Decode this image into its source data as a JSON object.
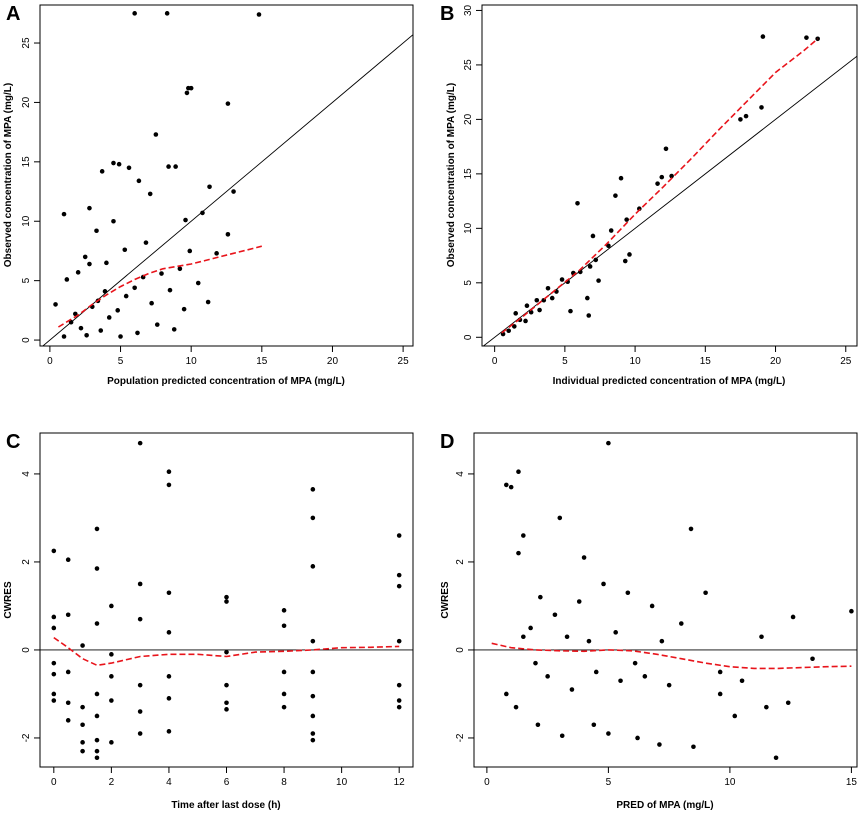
{
  "colors": {
    "points": "#000000",
    "loess": "#e8141b",
    "reference": "#000000"
  },
  "chart_data": [
    {
      "panel": "A",
      "type": "scatter",
      "xlabel": "Population predicted concentration of MPA (mg/L)",
      "ylabel": "Observed concentration of MPA (mg/L)",
      "xlim": [
        -0.7,
        25.7
      ],
      "ylim": [
        -0.5,
        28.2
      ],
      "xticks": [
        0,
        5,
        10,
        15,
        20,
        25
      ],
      "yticks": [
        0,
        5,
        10,
        15,
        20,
        25
      ],
      "reference_line": {
        "type": "identity",
        "label": "y = x"
      },
      "trend_line": {
        "type": "loess",
        "x": [
          0.6,
          2,
          3,
          4,
          5,
          6,
          7,
          8,
          9,
          10,
          11,
          12,
          13,
          14,
          15
        ],
        "y": [
          1.1,
          2.1,
          3.0,
          3.8,
          4.5,
          5.1,
          5.6,
          6.0,
          6.2,
          6.4,
          6.7,
          7.0,
          7.3,
          7.6,
          7.9
        ]
      },
      "points": [
        [
          6.0,
          27.5
        ],
        [
          8.3,
          27.5
        ],
        [
          14.8,
          27.4
        ],
        [
          9.8,
          21.2
        ],
        [
          10.0,
          21.2
        ],
        [
          9.7,
          20.8
        ],
        [
          12.6,
          19.9
        ],
        [
          7.5,
          17.3
        ],
        [
          4.5,
          14.9
        ],
        [
          4.9,
          14.8
        ],
        [
          5.6,
          14.5
        ],
        [
          8.4,
          14.6
        ],
        [
          8.9,
          14.6
        ],
        [
          3.7,
          14.2
        ],
        [
          2.8,
          11.1
        ],
        [
          1.0,
          10.6
        ],
        [
          10.8,
          10.7
        ],
        [
          13.0,
          12.5
        ],
        [
          11.3,
          12.9
        ],
        [
          6.3,
          13.4
        ],
        [
          7.1,
          12.3
        ],
        [
          9.6,
          10.1
        ],
        [
          4.5,
          10.0
        ],
        [
          3.3,
          9.2
        ],
        [
          12.6,
          8.9
        ],
        [
          11.8,
          7.3
        ],
        [
          6.8,
          8.2
        ],
        [
          5.3,
          7.6
        ],
        [
          2.5,
          7.0
        ],
        [
          2.8,
          6.4
        ],
        [
          4.0,
          6.5
        ],
        [
          2.0,
          5.7
        ],
        [
          1.2,
          5.1
        ],
        [
          0.4,
          3.0
        ],
        [
          1.5,
          1.5
        ],
        [
          1.8,
          2.2
        ],
        [
          2.2,
          1.0
        ],
        [
          2.6,
          0.4
        ],
        [
          3.0,
          2.8
        ],
        [
          3.4,
          3.3
        ],
        [
          3.9,
          4.1
        ],
        [
          4.2,
          1.9
        ],
        [
          4.8,
          2.5
        ],
        [
          5.4,
          3.7
        ],
        [
          6.0,
          4.4
        ],
        [
          6.6,
          5.3
        ],
        [
          7.2,
          3.1
        ],
        [
          7.9,
          5.6
        ],
        [
          8.5,
          4.2
        ],
        [
          9.2,
          6.0
        ],
        [
          9.9,
          7.5
        ],
        [
          10.5,
          4.8
        ],
        [
          11.2,
          3.2
        ],
        [
          6.2,
          0.6
        ],
        [
          7.6,
          1.3
        ],
        [
          8.8,
          0.9
        ],
        [
          9.5,
          2.6
        ],
        [
          5.0,
          0.3
        ],
        [
          3.6,
          0.8
        ],
        [
          1.0,
          0.3
        ]
      ]
    },
    {
      "panel": "B",
      "type": "scatter",
      "xlabel": "Individual predicted concentration of MPA (mg/L)",
      "ylabel": "Observed concentration of MPA (mg/L)",
      "xlim": [
        -0.9,
        25.8
      ],
      "ylim": [
        -0.8,
        30.5
      ],
      "xticks": [
        0,
        5,
        10,
        15,
        20,
        25
      ],
      "yticks": [
        0,
        5,
        10,
        15,
        20,
        25,
        30
      ],
      "reference_line": {
        "type": "identity",
        "label": "y = x"
      },
      "trend_line": {
        "type": "loess",
        "x": [
          0.5,
          2,
          4,
          6,
          8,
          10,
          12,
          14,
          16,
          18,
          20,
          22,
          23
        ],
        "y": [
          0.4,
          1.9,
          4.0,
          6.1,
          8.6,
          11.3,
          13.8,
          16.4,
          19.1,
          21.7,
          24.3,
          26.3,
          27.4
        ]
      },
      "points": [
        [
          19.1,
          27.6
        ],
        [
          22.2,
          27.5
        ],
        [
          23.0,
          27.4
        ],
        [
          17.5,
          20.0
        ],
        [
          17.9,
          20.3
        ],
        [
          19.0,
          21.1
        ],
        [
          12.2,
          17.3
        ],
        [
          12.6,
          14.8
        ],
        [
          11.9,
          14.7
        ],
        [
          11.6,
          14.1
        ],
        [
          9.0,
          14.6
        ],
        [
          5.9,
          12.3
        ],
        [
          8.6,
          13.0
        ],
        [
          10.3,
          11.8
        ],
        [
          9.4,
          10.8
        ],
        [
          7.0,
          9.3
        ],
        [
          8.3,
          9.8
        ],
        [
          9.6,
          7.6
        ],
        [
          9.3,
          7.0
        ],
        [
          7.4,
          5.2
        ],
        [
          6.6,
          3.6
        ],
        [
          6.7,
          2.0
        ],
        [
          5.4,
          2.4
        ],
        [
          4.1,
          3.6
        ],
        [
          3.2,
          2.5
        ],
        [
          2.2,
          1.5
        ],
        [
          1.4,
          1.0
        ],
        [
          0.6,
          0.3
        ],
        [
          1.0,
          0.6
        ],
        [
          1.8,
          1.6
        ],
        [
          2.6,
          2.3
        ],
        [
          3.5,
          3.4
        ],
        [
          4.4,
          4.2
        ],
        [
          5.2,
          5.1
        ],
        [
          6.1,
          6.0
        ],
        [
          7.2,
          7.1
        ],
        [
          8.1,
          8.4
        ],
        [
          3.0,
          3.4
        ],
        [
          4.8,
          5.3
        ],
        [
          5.6,
          5.9
        ],
        [
          2.3,
          2.9
        ],
        [
          1.5,
          2.2
        ],
        [
          6.8,
          6.5
        ],
        [
          3.8,
          4.5
        ]
      ]
    },
    {
      "panel": "C",
      "type": "scatter",
      "xlabel": "Time after last dose (h)",
      "ylabel": "CWRES",
      "xlim": [
        -0.48,
        12.48
      ],
      "ylim": [
        -2.66,
        4.93
      ],
      "xticks": [
        0,
        2,
        4,
        6,
        8,
        10,
        12
      ],
      "yticks": [
        -2,
        0,
        2,
        4
      ],
      "reference_line": {
        "type": "horizontal",
        "label": "y = 0"
      },
      "trend_line": {
        "type": "loess",
        "x": [
          0,
          0.5,
          1,
          1.5,
          2,
          3,
          4,
          5,
          6,
          7,
          8,
          9,
          10,
          11,
          12
        ],
        "y": [
          0.28,
          0.05,
          -0.2,
          -0.35,
          -0.3,
          -0.15,
          -0.1,
          -0.1,
          -0.15,
          -0.05,
          -0.03,
          0.0,
          0.05,
          0.06,
          0.08
        ]
      },
      "points": [
        [
          3.0,
          4.7
        ],
        [
          4.0,
          4.05
        ],
        [
          4.0,
          3.75
        ],
        [
          9.0,
          3.65
        ],
        [
          9.0,
          3.0
        ],
        [
          1.5,
          2.75
        ],
        [
          12.0,
          2.6
        ],
        [
          0.0,
          2.25
        ],
        [
          0.5,
          2.05
        ],
        [
          1.5,
          1.85
        ],
        [
          2.0,
          1.0
        ],
        [
          3.0,
          1.5
        ],
        [
          4.0,
          1.3
        ],
        [
          6.0,
          1.2
        ],
        [
          6.0,
          1.1
        ],
        [
          8.0,
          0.9
        ],
        [
          9.0,
          1.9
        ],
        [
          12.0,
          1.7
        ],
        [
          12.0,
          1.45
        ],
        [
          0.0,
          0.75
        ],
        [
          0.0,
          0.5
        ],
        [
          0.5,
          0.8
        ],
        [
          1.0,
          0.1
        ],
        [
          1.5,
          0.6
        ],
        [
          2.0,
          -0.1
        ],
        [
          3.0,
          0.7
        ],
        [
          4.0,
          0.4
        ],
        [
          6.0,
          -0.05
        ],
        [
          8.0,
          0.55
        ],
        [
          9.0,
          0.2
        ],
        [
          12.0,
          0.2
        ],
        [
          0.0,
          -0.3
        ],
        [
          0.0,
          -0.55
        ],
        [
          0.0,
          -1.0
        ],
        [
          0.0,
          -1.15
        ],
        [
          0.5,
          -0.5
        ],
        [
          0.5,
          -1.2
        ],
        [
          0.5,
          -1.6
        ],
        [
          1.0,
          -1.3
        ],
        [
          1.0,
          -1.7
        ],
        [
          1.0,
          -2.1
        ],
        [
          1.0,
          -2.3
        ],
        [
          1.5,
          -1.0
        ],
        [
          1.5,
          -1.5
        ],
        [
          1.5,
          -2.05
        ],
        [
          1.5,
          -2.3
        ],
        [
          1.5,
          -2.45
        ],
        [
          2.0,
          -0.6
        ],
        [
          2.0,
          -1.15
        ],
        [
          2.0,
          -2.1
        ],
        [
          3.0,
          -0.8
        ],
        [
          3.0,
          -1.4
        ],
        [
          3.0,
          -1.9
        ],
        [
          4.0,
          -0.6
        ],
        [
          4.0,
          -1.1
        ],
        [
          4.0,
          -1.85
        ],
        [
          6.0,
          -0.8
        ],
        [
          6.0,
          -1.2
        ],
        [
          6.0,
          -1.35
        ],
        [
          8.0,
          -0.5
        ],
        [
          8.0,
          -1.0
        ],
        [
          8.0,
          -1.3
        ],
        [
          9.0,
          -0.5
        ],
        [
          9.0,
          -1.05
        ],
        [
          9.0,
          -1.5
        ],
        [
          9.0,
          -1.9
        ],
        [
          9.0,
          -2.05
        ],
        [
          12.0,
          -0.8
        ],
        [
          12.0,
          -1.15
        ],
        [
          12.0,
          -1.3
        ]
      ]
    },
    {
      "panel": "D",
      "type": "scatter",
      "xlabel": "PRED of MPA (mg/L)",
      "ylabel": "CWRES",
      "xlim": [
        -0.53,
        15.23
      ],
      "ylim": [
        -2.66,
        4.93
      ],
      "xticks": [
        0,
        5,
        10,
        15
      ],
      "yticks": [
        -2,
        0,
        2,
        4
      ],
      "reference_line": {
        "type": "horizontal",
        "label": "y = 0"
      },
      "trend_line": {
        "type": "loess",
        "x": [
          0.2,
          1,
          2,
          3,
          4,
          5,
          6,
          7,
          8,
          9,
          10,
          11,
          12,
          13,
          14,
          15
        ],
        "y": [
          0.15,
          0.05,
          0.0,
          -0.02,
          -0.03,
          0.0,
          -0.02,
          -0.1,
          -0.2,
          -0.3,
          -0.38,
          -0.42,
          -0.42,
          -0.4,
          -0.38,
          -0.37
        ]
      },
      "points": [
        [
          5.0,
          4.7
        ],
        [
          1.3,
          4.05
        ],
        [
          1.0,
          3.7
        ],
        [
          0.8,
          3.75
        ],
        [
          3.0,
          3.0
        ],
        [
          8.4,
          2.75
        ],
        [
          1.5,
          2.6
        ],
        [
          1.3,
          2.2
        ],
        [
          4.0,
          2.1
        ],
        [
          9.0,
          1.3
        ],
        [
          15.0,
          0.88
        ],
        [
          12.6,
          0.75
        ],
        [
          11.3,
          0.3
        ],
        [
          13.4,
          -0.2
        ],
        [
          12.4,
          -1.2
        ],
        [
          11.5,
          -1.3
        ],
        [
          11.9,
          -2.45
        ],
        [
          10.2,
          -1.5
        ],
        [
          9.6,
          -1.0
        ],
        [
          8.5,
          -2.2
        ],
        [
          7.1,
          -2.15
        ],
        [
          6.2,
          -2.0
        ],
        [
          5.0,
          -1.9
        ],
        [
          4.4,
          -1.7
        ],
        [
          3.1,
          -1.95
        ],
        [
          2.1,
          -1.7
        ],
        [
          1.2,
          -1.3
        ],
        [
          0.8,
          -1.0
        ],
        [
          2.5,
          -0.6
        ],
        [
          3.5,
          -0.9
        ],
        [
          4.5,
          -0.5
        ],
        [
          5.5,
          -0.7
        ],
        [
          6.5,
          -0.6
        ],
        [
          7.5,
          -0.8
        ],
        [
          8.0,
          0.6
        ],
        [
          6.8,
          1.0
        ],
        [
          5.8,
          1.3
        ],
        [
          4.8,
          1.5
        ],
        [
          3.8,
          1.1
        ],
        [
          2.8,
          0.8
        ],
        [
          1.8,
          0.5
        ],
        [
          2.2,
          1.2
        ],
        [
          3.3,
          0.3
        ],
        [
          4.2,
          0.2
        ],
        [
          5.3,
          0.4
        ],
        [
          6.1,
          -0.3
        ],
        [
          7.2,
          0.2
        ],
        [
          9.6,
          -0.5
        ],
        [
          10.5,
          -0.7
        ],
        [
          2.0,
          -0.3
        ],
        [
          1.5,
          0.3
        ]
      ]
    }
  ]
}
